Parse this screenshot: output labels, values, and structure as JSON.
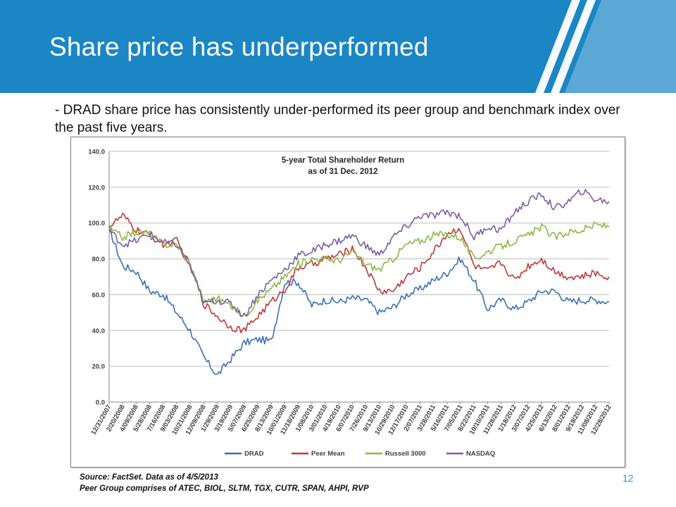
{
  "slide": {
    "title": "Share price has underperformed",
    "bullet": "- DRAD share price has consistently under-performed its peer group and benchmark index over the past five years.",
    "source_note": "Source: FactSet. Data as of 4/5/2013",
    "peer_note": "Peer Group comprises of ATEC, BIOL, SLTM, TGX, CUTR, SPAN, AHPI, RVP",
    "page_number": "12"
  },
  "colors": {
    "header": "#1b86c4",
    "drad": "#3b6fb6",
    "peer_mean": "#c0393b",
    "russell": "#8db845",
    "nasdaq": "#7b5ea7"
  },
  "chart_data": {
    "type": "line",
    "title": [
      "5-year Total Shareholder Return",
      "as of 31 Dec. 2012"
    ],
    "xlabel": "",
    "ylabel": "",
    "ylim": [
      0,
      140
    ],
    "yticks": [
      "0.0",
      "20.0",
      "40.0",
      "60.0",
      "80.0",
      "100.0",
      "120.0",
      "140.0"
    ],
    "categories": [
      "12/31/2007",
      "2/20/2008",
      "4/09/2008",
      "5/28/2008",
      "7/16/2008",
      "9/03/2008",
      "10/21/2008",
      "12/09/2008",
      "1/29/2009",
      "3/19/2009",
      "5/07/2009",
      "6/25/2009",
      "8/13/2009",
      "10/01/2009",
      "11/18/2009",
      "1/08/2010",
      "3/01/2010",
      "4/19/2010",
      "6/07/2010",
      "7/26/2010",
      "9/13/2010",
      "10/29/2010",
      "12/17/2010",
      "2/07/2011",
      "3/28/2011",
      "5/16/2011",
      "7/05/2011",
      "8/22/2011",
      "10/10/2011",
      "11/28/2011",
      "1/18/2012",
      "3/07/2012",
      "4/25/2012",
      "6/13/2012",
      "8/01/2012",
      "9/19/2012",
      "11/08/2012",
      "12/28/2012"
    ],
    "series": [
      {
        "name": "DRAD",
        "color": "#3b6fb6",
        "values": [
          97,
          76,
          73,
          62,
          60,
          50,
          40,
          25,
          15,
          24,
          33,
          35,
          34,
          67,
          67,
          54,
          57,
          56,
          58,
          57,
          50,
          53,
          60,
          63,
          68,
          72,
          80,
          68,
          52,
          57,
          52,
          56,
          62,
          62,
          56,
          57,
          57,
          56
        ]
      },
      {
        "name": "Peer Mean",
        "color": "#c0393b",
        "values": [
          98,
          104,
          96,
          93,
          88,
          90,
          76,
          55,
          48,
          42,
          40,
          48,
          56,
          63,
          75,
          77,
          80,
          82,
          86,
          75,
          62,
          62,
          70,
          75,
          84,
          94,
          97,
          76,
          73,
          78,
          68,
          76,
          80,
          73,
          70,
          70,
          72,
          70
        ]
      },
      {
        "name": "Russell 3000",
        "color": "#8db845",
        "values": [
          97,
          92,
          95,
          94,
          88,
          88,
          77,
          56,
          58,
          54,
          48,
          57,
          63,
          70,
          77,
          80,
          80,
          79,
          84,
          77,
          74,
          80,
          88,
          90,
          93,
          94,
          92,
          80,
          84,
          87,
          90,
          93,
          98,
          92,
          95,
          96,
          99,
          98
        ]
      },
      {
        "name": "NASDAQ",
        "color": "#7b5ea7",
        "values": [
          96,
          88,
          90,
          94,
          89,
          88,
          76,
          55,
          57,
          55,
          48,
          60,
          68,
          74,
          82,
          84,
          88,
          90,
          93,
          87,
          82,
          92,
          98,
          104,
          104,
          106,
          104,
          92,
          98,
          96,
          106,
          112,
          116,
          108,
          112,
          118,
          113,
          112
        ]
      }
    ],
    "legend": [
      "DRAD",
      "Peer Mean",
      "Russell 3000",
      "NASDAQ"
    ],
    "legend_position": "bottom",
    "grid": true
  }
}
